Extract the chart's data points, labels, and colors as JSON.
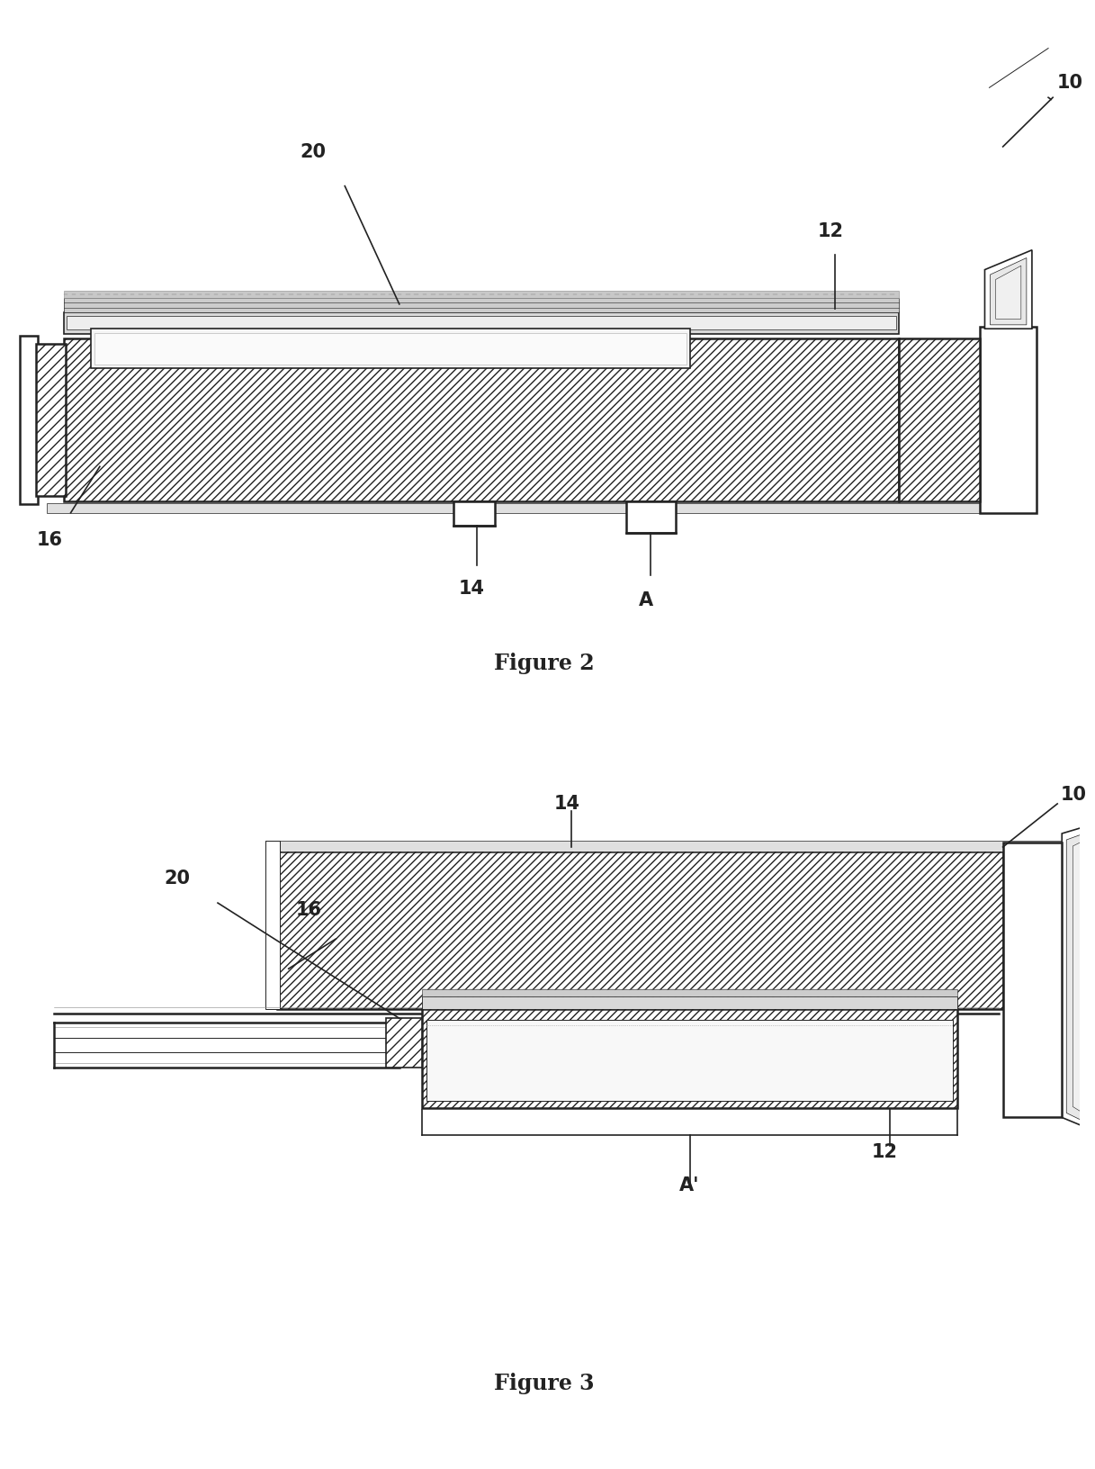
{
  "fig_width": 12.4,
  "fig_height": 16.62,
  "bg_color": "#ffffff",
  "line_color": "#222222",
  "fig2_title": "Figure 2",
  "fig3_title": "Figure 3",
  "labels": {
    "10_1": "10",
    "10_2": "10",
    "12_1": "12",
    "12_2": "12",
    "14_1": "14",
    "14_2": "14",
    "16_1": "16",
    "16_2": "16",
    "20_1": "20",
    "20_2": "20",
    "A": "A",
    "Ap": "A’"
  }
}
